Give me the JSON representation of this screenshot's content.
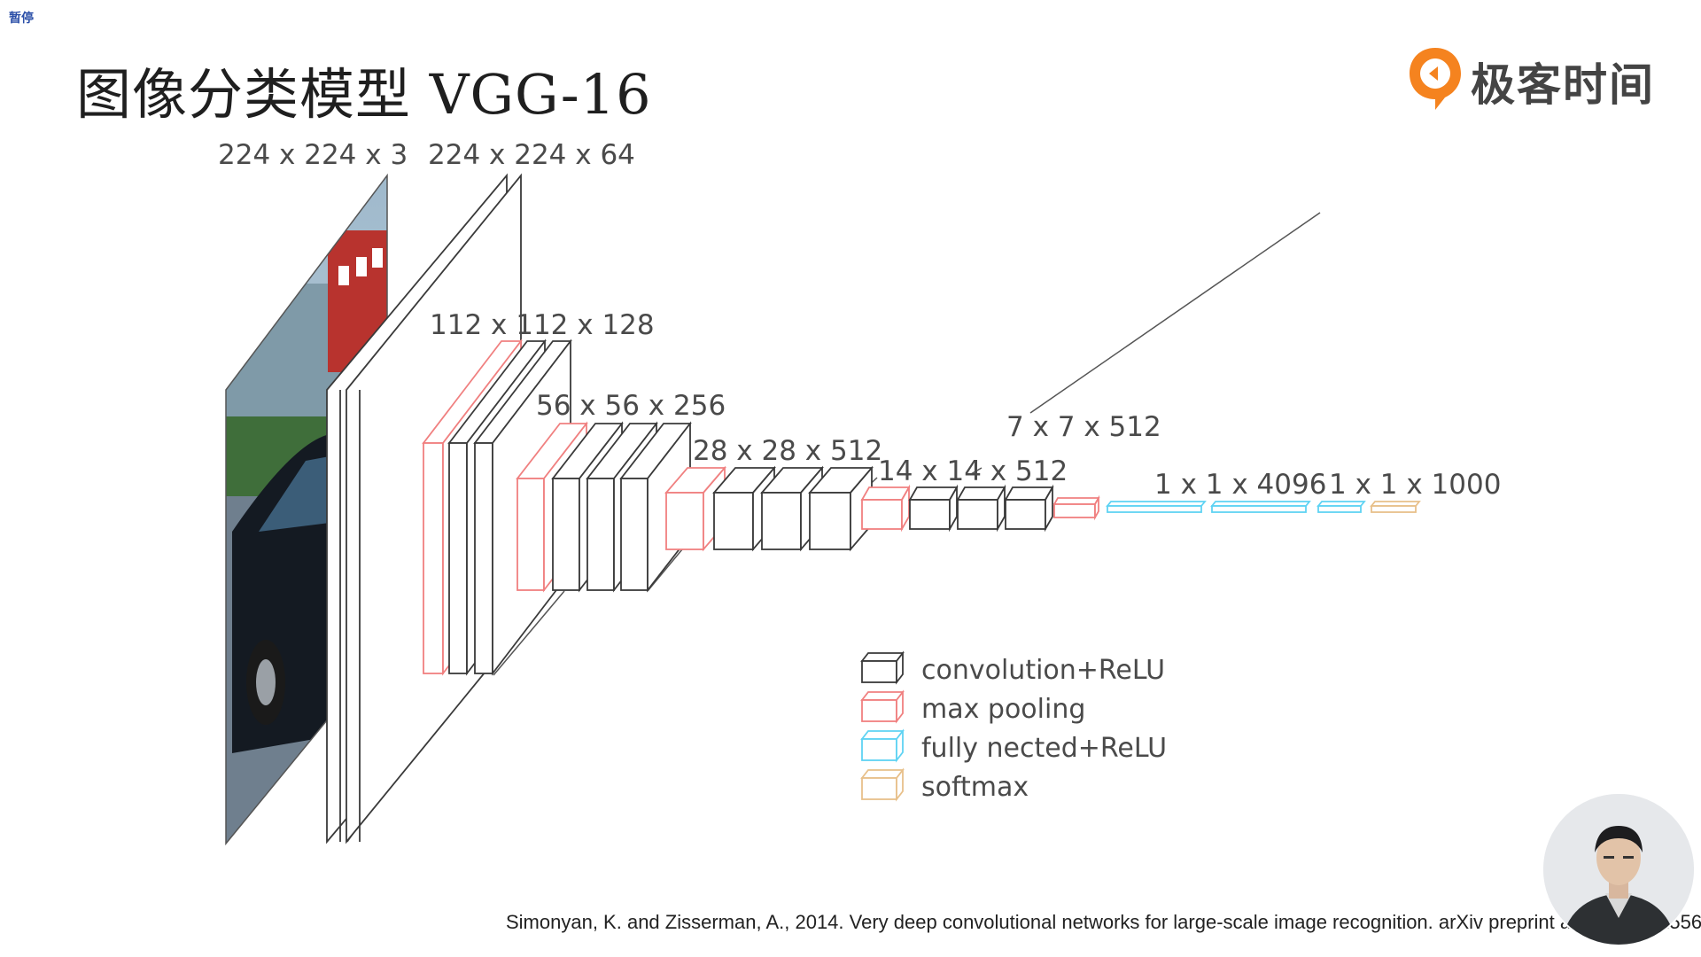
{
  "pause_label": "暂停",
  "title": "图像分类模型 VGG-16",
  "brand": {
    "name": "极客时间",
    "logo_icon": "geektime-logo-icon",
    "accent": "#f5831f"
  },
  "diagram": {
    "layer_labels": [
      "224 x 224 x 3",
      "224 x 224 x 64",
      "112 x 112 x 128",
      "56 x 56 x 256",
      "28 x 28 x 512",
      "14 x 14 x 512",
      "7 x 7 x 512",
      "1 x 1 x 4096",
      "1 x 1 x 1000"
    ],
    "legend": [
      {
        "label": "convolution+ReLU",
        "color": "#3a3a3a"
      },
      {
        "label": "max pooling",
        "color": "#f08080"
      },
      {
        "label": "fully nected+ReLU",
        "color": "#5fd3f3"
      },
      {
        "label": "softmax",
        "color": "#e8c08a"
      }
    ],
    "colors": {
      "conv": "#3a3a3a",
      "pool": "#f08080",
      "fc": "#5fd3f3",
      "softmax": "#e8c08a"
    }
  },
  "citation": "Simonyan, K. and Zisserman, A., 2014. Very deep convolutional networks for large-scale image recognition. arXiv preprint arXiv:1409.1556.",
  "presenter": {
    "icon": "presenter-video-icon"
  }
}
